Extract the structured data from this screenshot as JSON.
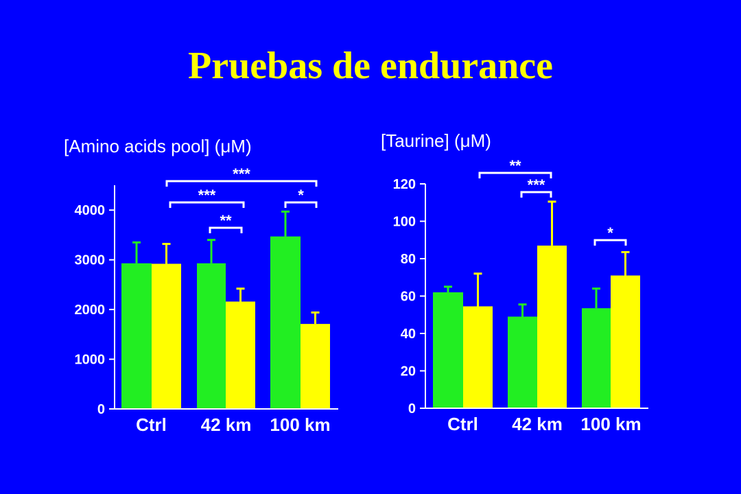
{
  "slide": {
    "title": "Pruebas de endurance"
  },
  "colors": {
    "background": "#0000FF",
    "title": "#FFFF00",
    "group_a": "#22EE22",
    "group_b": "#FFFF00",
    "text": "#FFFFFF"
  },
  "chart_data": [
    {
      "type": "bar",
      "title": "[Amino acids pool] (μM)",
      "categories": [
        "Ctrl",
        "42 km",
        "100 km"
      ],
      "series": [
        {
          "values": [
            2930,
            2930,
            3470
          ],
          "errors": [
            420,
            470,
            500
          ]
        },
        {
          "values": [
            2920,
            2160,
            1710
          ],
          "errors": [
            400,
            260,
            230
          ]
        }
      ],
      "ylim": [
        0,
        4500
      ],
      "yticks": [
        0,
        1000,
        2000,
        3000,
        4000
      ],
      "significance": [
        {
          "label": "***",
          "from": "Ctrl",
          "to": "100 km"
        },
        {
          "label": "***",
          "from": "Ctrl",
          "to": "42 km"
        },
        {
          "label": "*",
          "from": "100 km",
          "to": "100 km"
        },
        {
          "label": "**",
          "from": "42 km",
          "to": "42 km"
        }
      ]
    },
    {
      "type": "bar",
      "title": "[Taurine] (μM)",
      "categories": [
        "Ctrl",
        "42 km",
        "100 km"
      ],
      "series": [
        {
          "values": [
            62,
            49,
            53.5
          ],
          "errors": [
            3,
            6.5,
            10.5
          ]
        },
        {
          "values": [
            54.5,
            87,
            71
          ],
          "errors": [
            17.5,
            23.5,
            12.5
          ]
        }
      ],
      "ylim": [
        0,
        120
      ],
      "yticks": [
        0,
        20,
        40,
        60,
        80,
        100,
        120
      ],
      "significance": [
        {
          "label": "**",
          "from": "Ctrl",
          "to": "42 km"
        },
        {
          "label": "***",
          "from": "42 km",
          "to": "42 km"
        },
        {
          "label": "*",
          "from": "100 km",
          "to": "100 km"
        }
      ]
    }
  ]
}
